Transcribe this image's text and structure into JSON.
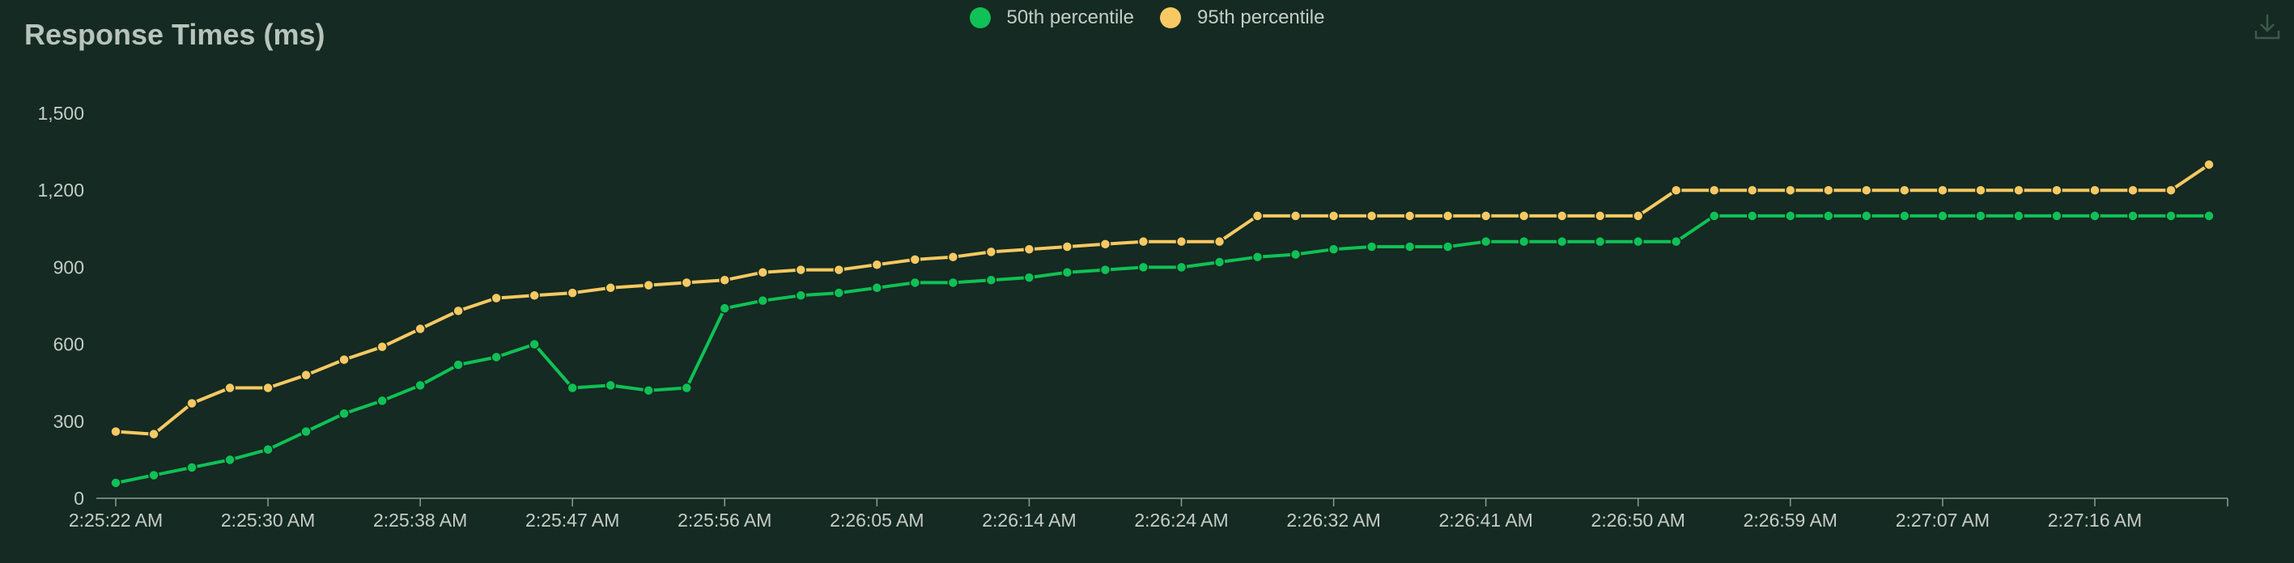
{
  "chart_data": {
    "type": "line",
    "title": "Response Times (ms)",
    "ylim": [
      0,
      1500
    ],
    "yticks": [
      "0",
      "300",
      "600",
      "900",
      "1,200",
      "1,500"
    ],
    "ytick_values": [
      0,
      300,
      600,
      900,
      1200,
      1500
    ],
    "xtick_labels": [
      "2:25:22 AM",
      "2:25:30 AM",
      "2:25:38 AM",
      "2:25:47 AM",
      "2:25:56 AM",
      "2:26:05 AM",
      "2:26:14 AM",
      "2:26:24 AM",
      "2:26:32 AM",
      "2:26:41 AM",
      "2:26:50 AM",
      "2:26:59 AM",
      "2:27:07 AM",
      "2:27:16 AM"
    ],
    "legend_position": "top-center",
    "grid": false,
    "series": [
      {
        "name": "50th percentile",
        "color": "#0fc156",
        "values": [
          60,
          90,
          120,
          150,
          190,
          260,
          330,
          380,
          440,
          520,
          550,
          600,
          430,
          440,
          420,
          430,
          740,
          770,
          790,
          800,
          820,
          840,
          840,
          850,
          860,
          880,
          890,
          900,
          900,
          920,
          940,
          950,
          970,
          980,
          980,
          980,
          1000,
          1000,
          1000,
          1000,
          1000,
          1000,
          1100,
          1100,
          1100,
          1100,
          1100,
          1100,
          1100,
          1100,
          1100,
          1100,
          1100,
          1100,
          1100,
          1100
        ]
      },
      {
        "name": "95th percentile",
        "color": "#f8c962",
        "values": [
          260,
          250,
          370,
          430,
          430,
          480,
          540,
          590,
          660,
          730,
          780,
          790,
          800,
          820,
          830,
          840,
          850,
          880,
          890,
          890,
          910,
          930,
          940,
          960,
          970,
          980,
          990,
          1000,
          1000,
          1000,
          1100,
          1100,
          1100,
          1100,
          1100,
          1100,
          1100,
          1100,
          1100,
          1100,
          1100,
          1200,
          1200,
          1200,
          1200,
          1200,
          1200,
          1200,
          1200,
          1200,
          1200,
          1200,
          1200,
          1200,
          1200,
          1300
        ]
      }
    ]
  },
  "icons": {
    "download": "download-icon"
  }
}
